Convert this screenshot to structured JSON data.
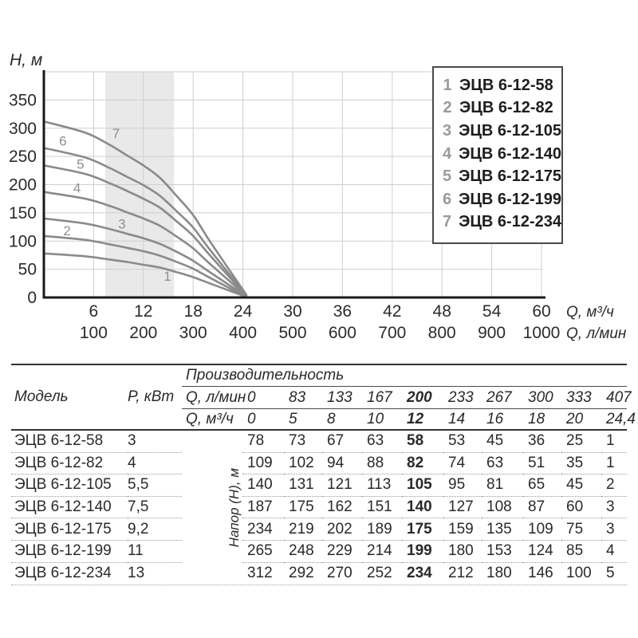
{
  "page_bg": "#ffffff",
  "chart_data": {
    "type": "line",
    "ylabel": "H, м",
    "xlabel_primary": "Q, м³/ч",
    "xlabel_secondary": "Q, л/мин",
    "xlim": [
      0,
      60
    ],
    "ylim": [
      0,
      400
    ],
    "grid": true,
    "x_ticks_m3h": [
      6,
      12,
      18,
      24,
      30,
      36,
      42,
      48,
      54,
      60
    ],
    "x_ticks_lmin": [
      100,
      200,
      300,
      400,
      500,
      600,
      700,
      800,
      900,
      1000
    ],
    "y_ticks": [
      0,
      50,
      100,
      150,
      200,
      250,
      300,
      350
    ],
    "q_points": [
      0,
      5,
      8,
      10,
      12,
      14,
      16,
      18,
      20,
      24.4
    ],
    "recommended_zone_q": [
      7.4,
      15.7
    ],
    "series": [
      {
        "index": "1",
        "name": "ЭЦВ 6-12-58",
        "values": [
          78,
          73,
          67,
          63,
          58,
          53,
          45,
          36,
          25,
          1
        ],
        "label_pos": [
          14.9,
          30
        ]
      },
      {
        "index": "2",
        "name": "ЭЦВ 6-12-82",
        "values": [
          109,
          102,
          94,
          88,
          82,
          74,
          63,
          51,
          35,
          1
        ],
        "label_pos": [
          2.8,
          110
        ]
      },
      {
        "index": "3",
        "name": "ЭЦВ 6-12-105",
        "values": [
          140,
          131,
          121,
          113,
          105,
          95,
          81,
          65,
          45,
          2
        ],
        "label_pos": [
          9.4,
          122
        ]
      },
      {
        "index": "4",
        "name": "ЭЦВ 6-12-140",
        "values": [
          187,
          175,
          162,
          151,
          140,
          127,
          108,
          87,
          60,
          3
        ],
        "label_pos": [
          4.0,
          186
        ]
      },
      {
        "index": "5",
        "name": "ЭЦВ 6-12-175",
        "values": [
          234,
          219,
          202,
          189,
          175,
          159,
          135,
          109,
          75,
          3
        ],
        "label_pos": [
          4.4,
          228
        ]
      },
      {
        "index": "6",
        "name": "ЭЦВ 6-12-199",
        "values": [
          265,
          248,
          229,
          214,
          199,
          180,
          153,
          124,
          85,
          4
        ],
        "label_pos": [
          2.3,
          269
        ]
      },
      {
        "index": "7",
        "name": "ЭЦВ 6-12-234",
        "values": [
          312,
          292,
          270,
          252,
          234,
          212,
          180,
          146,
          100,
          5
        ],
        "label_pos": [
          8.7,
          283
        ]
      }
    ],
    "colors": {
      "curve": "#8a8a8a",
      "zone": "#e9e9e9",
      "grid": "#cfcfcf",
      "axis": "#1a1a1a",
      "tick_text": "#2b2b2b",
      "curve_label": "#8f8f8f"
    }
  },
  "legend": {
    "items": [
      {
        "index": "1",
        "label": "ЭЦВ 6-12-58"
      },
      {
        "index": "2",
        "label": "ЭЦВ 6-12-82"
      },
      {
        "index": "3",
        "label": "ЭЦВ 6-12-105"
      },
      {
        "index": "4",
        "label": "ЭЦВ 6-12-140"
      },
      {
        "index": "5",
        "label": "ЭЦВ 6-12-175"
      },
      {
        "index": "6",
        "label": "ЭЦВ 6-12-199"
      },
      {
        "index": "7",
        "label": "ЭЦВ 6-12-234"
      }
    ]
  },
  "table": {
    "header": {
      "model": "Модель",
      "power": "P, кВт",
      "performance": "Производительность",
      "q_lmin_label": "Q, л/мин",
      "q_lmin_values": [
        "0",
        "83",
        "133",
        "167",
        "200",
        "233",
        "267",
        "300",
        "333",
        "407"
      ],
      "q_m3h_label": "Q, м³/ч",
      "q_m3h_values": [
        "0",
        "5",
        "8",
        "10",
        "12",
        "14",
        "16",
        "18",
        "20",
        "24,4"
      ],
      "napor": "Напор (Н), м",
      "bold_col": 4
    },
    "rows": [
      {
        "model": "ЭЦВ 6-12-58",
        "power": "3",
        "values": [
          "78",
          "73",
          "67",
          "63",
          "58",
          "53",
          "45",
          "36",
          "25",
          "1"
        ]
      },
      {
        "model": "ЭЦВ 6-12-82",
        "power": "4",
        "values": [
          "109",
          "102",
          "94",
          "88",
          "82",
          "74",
          "63",
          "51",
          "35",
          "1"
        ]
      },
      {
        "model": "ЭЦВ 6-12-105",
        "power": "5,5",
        "values": [
          "140",
          "131",
          "121",
          "113",
          "105",
          "95",
          "81",
          "65",
          "45",
          "2"
        ]
      },
      {
        "model": "ЭЦВ 6-12-140",
        "power": "7,5",
        "values": [
          "187",
          "175",
          "162",
          "151",
          "140",
          "127",
          "108",
          "87",
          "60",
          "3"
        ]
      },
      {
        "model": "ЭЦВ 6-12-175",
        "power": "9,2",
        "values": [
          "234",
          "219",
          "202",
          "189",
          "175",
          "159",
          "135",
          "109",
          "75",
          "3"
        ]
      },
      {
        "model": "ЭЦВ 6-12-199",
        "power": "11",
        "values": [
          "265",
          "248",
          "229",
          "214",
          "199",
          "180",
          "153",
          "124",
          "85",
          "4"
        ]
      },
      {
        "model": "ЭЦВ 6-12-234",
        "power": "13",
        "values": [
          "312",
          "292",
          "270",
          "252",
          "234",
          "212",
          "180",
          "146",
          "100",
          "5"
        ]
      }
    ]
  }
}
